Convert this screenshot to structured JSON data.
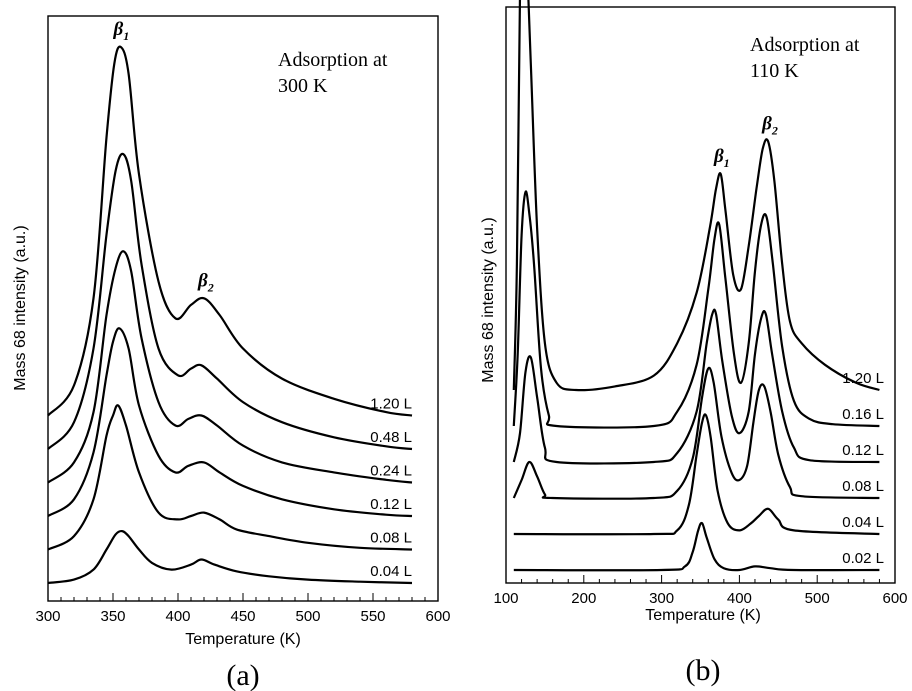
{
  "chart_data": [
    {
      "type": "line",
      "panel_label": "(a)",
      "annotation": [
        "Adsorption at",
        "300 K"
      ],
      "xlabel": "Temperature (K)",
      "ylabel": "Mass 68 intensity (a.u.)",
      "xlim": [
        300,
        600
      ],
      "xticks": [
        300,
        350,
        400,
        450,
        500,
        550,
        600
      ],
      "xminor_step": 10,
      "x_data_range": [
        300,
        580
      ],
      "yscale": 1.0,
      "peaks": [
        {
          "label": "β",
          "sub": "1",
          "x": 355,
          "series": "1.20 L"
        },
        {
          "label": "β",
          "sub": "2",
          "x": 420,
          "series": "1.20 L"
        }
      ],
      "series": [
        {
          "name": "0.04 L",
          "baseline": 0.0,
          "points": [
            [
              300,
              0
            ],
            [
              320,
              0.1
            ],
            [
              335,
              0.4
            ],
            [
              345,
              1.0
            ],
            [
              352,
              1.45
            ],
            [
              357,
              1.55
            ],
            [
              362,
              1.4
            ],
            [
              370,
              1.0
            ],
            [
              380,
              0.6
            ],
            [
              395,
              0.4
            ],
            [
              410,
              0.55
            ],
            [
              418,
              0.7
            ],
            [
              428,
              0.55
            ],
            [
              445,
              0.35
            ],
            [
              470,
              0.2
            ],
            [
              500,
              0.1
            ],
            [
              540,
              0.04
            ],
            [
              580,
              0
            ]
          ]
        },
        {
          "name": "0.08 L",
          "baseline": 1.0,
          "points": [
            [
              300,
              0
            ],
            [
              320,
              0.4
            ],
            [
              335,
              1.5
            ],
            [
              345,
              3.4
            ],
            [
              350,
              4.0
            ],
            [
              354,
              4.3
            ],
            [
              360,
              3.7
            ],
            [
              370,
              2.3
            ],
            [
              385,
              1.1
            ],
            [
              400,
              0.9
            ],
            [
              410,
              1.0
            ],
            [
              420,
              1.1
            ],
            [
              432,
              0.9
            ],
            [
              445,
              0.6
            ],
            [
              470,
              0.4
            ],
            [
              500,
              0.2
            ],
            [
              540,
              0.05
            ],
            [
              580,
              0
            ]
          ]
        },
        {
          "name": "0.12 L",
          "baseline": 2.0,
          "points": [
            [
              300,
              0
            ],
            [
              320,
              0.5
            ],
            [
              335,
              1.9
            ],
            [
              345,
              4.2
            ],
            [
              350,
              5.2
            ],
            [
              355,
              5.6
            ],
            [
              362,
              5.0
            ],
            [
              370,
              3.3
            ],
            [
              385,
              1.8
            ],
            [
              398,
              1.3
            ],
            [
              408,
              1.5
            ],
            [
              420,
              1.6
            ],
            [
              432,
              1.3
            ],
            [
              450,
              0.9
            ],
            [
              480,
              0.5
            ],
            [
              520,
              0.2
            ],
            [
              560,
              0.04
            ],
            [
              580,
              0
            ]
          ]
        },
        {
          "name": "0.24 L",
          "baseline": 3.0,
          "points": [
            [
              300,
              0
            ],
            [
              320,
              0.6
            ],
            [
              335,
              2.1
            ],
            [
              345,
              5.0
            ],
            [
              352,
              6.4
            ],
            [
              358,
              6.9
            ],
            [
              364,
              6.3
            ],
            [
              372,
              4.3
            ],
            [
              385,
              2.4
            ],
            [
              398,
              1.7
            ],
            [
              408,
              1.9
            ],
            [
              418,
              2.0
            ],
            [
              430,
              1.7
            ],
            [
              450,
              1.1
            ],
            [
              480,
              0.6
            ],
            [
              520,
              0.3
            ],
            [
              560,
              0.08
            ],
            [
              580,
              0
            ]
          ]
        },
        {
          "name": "0.48 L",
          "baseline": 4.0,
          "points": [
            [
              300,
              0
            ],
            [
              320,
              0.8
            ],
            [
              335,
              3.0
            ],
            [
              345,
              6.4
            ],
            [
              352,
              8.3
            ],
            [
              358,
              8.8
            ],
            [
              364,
              8.0
            ],
            [
              372,
              5.5
            ],
            [
              385,
              3.0
            ],
            [
              400,
              2.2
            ],
            [
              410,
              2.4
            ],
            [
              418,
              2.5
            ],
            [
              430,
              2.1
            ],
            [
              450,
              1.4
            ],
            [
              480,
              0.8
            ],
            [
              520,
              0.35
            ],
            [
              560,
              0.08
            ],
            [
              580,
              0
            ]
          ]
        },
        {
          "name": "1.20 L",
          "baseline": 5.0,
          "points": [
            [
              300,
              0
            ],
            [
              320,
              0.9
            ],
            [
              335,
              3.5
            ],
            [
              345,
              8.3
            ],
            [
              351,
              10.5
            ],
            [
              356,
              11.0
            ],
            [
              362,
              10.2
            ],
            [
              370,
              7.2
            ],
            [
              385,
              4.0
            ],
            [
              398,
              2.9
            ],
            [
              410,
              3.3
            ],
            [
              420,
              3.5
            ],
            [
              432,
              3.0
            ],
            [
              450,
              2.0
            ],
            [
              480,
              1.1
            ],
            [
              520,
              0.5
            ],
            [
              560,
              0.1
            ],
            [
              580,
              0
            ]
          ]
        }
      ]
    },
    {
      "type": "line",
      "panel_label": "(b)",
      "annotation": [
        "Adsorption at",
        "110 K"
      ],
      "xlabel": "Temperature (K)",
      "ylabel": "Mass 68 intensity (a.u.)",
      "xlim": [
        100,
        600
      ],
      "xticks": [
        100,
        200,
        300,
        400,
        500,
        600
      ],
      "xminor_step": 20,
      "x_data_range": [
        110,
        580
      ],
      "yscale": 1.0,
      "peaks": [
        {
          "label": "β",
          "sub": "1",
          "x": 375,
          "series": "1.20 L"
        },
        {
          "label": "β",
          "sub": "2",
          "x": 437,
          "series": "1.20 L"
        }
      ],
      "series": [
        {
          "name": "0.02 L",
          "baseline": 0.0,
          "points": [
            [
              110,
              0
            ],
            [
              300,
              0
            ],
            [
              330,
              0.1
            ],
            [
              340,
              0.5
            ],
            [
              347,
              1.1
            ],
            [
              352,
              1.3
            ],
            [
              358,
              0.9
            ],
            [
              368,
              0.3
            ],
            [
              380,
              0.05
            ],
            [
              400,
              0
            ],
            [
              420,
              0.1
            ],
            [
              440,
              0.05
            ],
            [
              470,
              0
            ],
            [
              580,
              0
            ]
          ]
        },
        {
          "name": "0.04 L",
          "baseline": 1.0,
          "points": [
            [
              110,
              0
            ],
            [
              290,
              0
            ],
            [
              320,
              0.1
            ],
            [
              335,
              0.8
            ],
            [
              345,
              2.2
            ],
            [
              352,
              3.1
            ],
            [
              357,
              3.3
            ],
            [
              363,
              2.7
            ],
            [
              372,
              1.2
            ],
            [
              385,
              0.3
            ],
            [
              400,
              0.1
            ],
            [
              415,
              0.3
            ],
            [
              425,
              0.5
            ],
            [
              437,
              0.7
            ],
            [
              450,
              0.4
            ],
            [
              470,
              0.1
            ],
            [
              580,
              0
            ]
          ]
        },
        {
          "name": "0.08 L",
          "baseline": 2.0,
          "points": [
            [
              110,
              0
            ],
            [
              120,
              0.5
            ],
            [
              130,
              1.0
            ],
            [
              140,
              0.6
            ],
            [
              150,
              0.1
            ],
            [
              160,
              0
            ],
            [
              290,
              0
            ],
            [
              320,
              0.2
            ],
            [
              340,
              1.1
            ],
            [
              352,
              2.8
            ],
            [
              360,
              3.6
            ],
            [
              367,
              3.2
            ],
            [
              377,
              1.7
            ],
            [
              390,
              0.7
            ],
            [
              400,
              0.5
            ],
            [
              410,
              0.9
            ],
            [
              418,
              2.1
            ],
            [
              425,
              3.0
            ],
            [
              432,
              3.1
            ],
            [
              440,
              2.4
            ],
            [
              450,
              1.2
            ],
            [
              465,
              0.3
            ],
            [
              480,
              0.05
            ],
            [
              580,
              0
            ]
          ]
        },
        {
          "name": "0.12 L",
          "baseline": 3.0,
          "points": [
            [
              110,
              0
            ],
            [
              118,
              0.8
            ],
            [
              125,
              2.5
            ],
            [
              132,
              2.9
            ],
            [
              140,
              1.8
            ],
            [
              150,
              0.4
            ],
            [
              165,
              0
            ],
            [
              290,
              0
            ],
            [
              320,
              0.25
            ],
            [
              345,
              1.4
            ],
            [
              358,
              3.3
            ],
            [
              365,
              4.1
            ],
            [
              370,
              4.1
            ],
            [
              378,
              2.8
            ],
            [
              390,
              1.3
            ],
            [
              400,
              0.8
            ],
            [
              412,
              1.4
            ],
            [
              420,
              3.0
            ],
            [
              428,
              4.0
            ],
            [
              434,
              4.1
            ],
            [
              442,
              3.0
            ],
            [
              455,
              1.4
            ],
            [
              470,
              0.4
            ],
            [
              490,
              0.05
            ],
            [
              580,
              0
            ]
          ]
        },
        {
          "name": "0.16 L",
          "baseline": 4.0,
          "points": [
            [
              110,
              0
            ],
            [
              115,
              2.0
            ],
            [
              120,
              5.3
            ],
            [
              125,
              6.5
            ],
            [
              130,
              5.9
            ],
            [
              136,
              4.5
            ],
            [
              145,
              1.6
            ],
            [
              155,
              0.3
            ],
            [
              165,
              0
            ],
            [
              290,
              0
            ],
            [
              320,
              0.4
            ],
            [
              345,
              1.7
            ],
            [
              360,
              3.8
            ],
            [
              368,
              5.2
            ],
            [
              374,
              5.6
            ],
            [
              382,
              4.1
            ],
            [
              393,
              2.0
            ],
            [
              402,
              1.2
            ],
            [
              412,
              2.3
            ],
            [
              420,
              4.3
            ],
            [
              428,
              5.6
            ],
            [
              435,
              5.8
            ],
            [
              443,
              4.5
            ],
            [
              455,
              2.2
            ],
            [
              470,
              0.7
            ],
            [
              490,
              0.2
            ],
            [
              520,
              0.05
            ],
            [
              580,
              0
            ]
          ]
        },
        {
          "name": "1.20 L",
          "baseline": 5.0,
          "points": [
            [
              110,
              0
            ],
            [
              114,
              3.5
            ],
            [
              118,
              11.0
            ],
            [
              121,
              13.7
            ],
            [
              126,
              12.3
            ],
            [
              132,
              9.0
            ],
            [
              140,
              4.5
            ],
            [
              150,
              1.3
            ],
            [
              165,
              0.2
            ],
            [
              190,
              0
            ],
            [
              240,
              0.1
            ],
            [
              290,
              0.4
            ],
            [
              320,
              1.3
            ],
            [
              345,
              2.7
            ],
            [
              362,
              4.5
            ],
            [
              370,
              5.6
            ],
            [
              376,
              6.0
            ],
            [
              382,
              5.0
            ],
            [
              392,
              3.2
            ],
            [
              402,
              2.8
            ],
            [
              412,
              4.0
            ],
            [
              422,
              5.6
            ],
            [
              430,
              6.7
            ],
            [
              437,
              6.9
            ],
            [
              445,
              5.8
            ],
            [
              455,
              3.5
            ],
            [
              465,
              1.9
            ],
            [
              480,
              1.3
            ],
            [
              510,
              0.7
            ],
            [
              550,
              0.2
            ],
            [
              580,
              0
            ]
          ]
        }
      ]
    }
  ]
}
